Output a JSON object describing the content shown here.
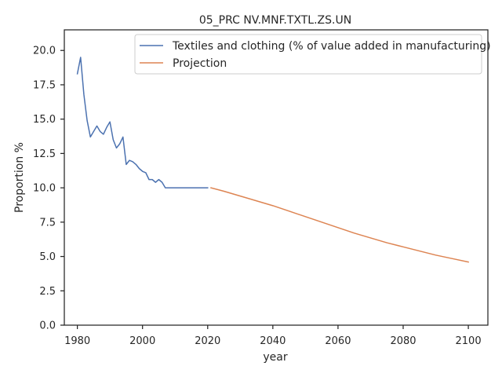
{
  "chart_data": {
    "type": "line",
    "title": "05_PRC NV.MNF.TXTL.ZS.UN",
    "xlabel": "year",
    "ylabel": "Proportion %",
    "xlim": [
      1976,
      2106
    ],
    "ylim": [
      0,
      21.5
    ],
    "x_ticks": [
      1980,
      2000,
      2020,
      2040,
      2060,
      2080,
      2100
    ],
    "y_ticks": [
      0.0,
      2.5,
      5.0,
      7.5,
      10.0,
      12.5,
      15.0,
      17.5,
      20.0
    ],
    "grid": false,
    "legend_position": "top-right",
    "series": [
      {
        "name": "Textiles and clothing (% of value added in manufacturing)",
        "color": "#4c72b0",
        "x": [
          1980,
          1981,
          1982,
          1983,
          1984,
          1985,
          1986,
          1987,
          1988,
          1989,
          1990,
          1991,
          1992,
          1993,
          1994,
          1995,
          1996,
          1997,
          1998,
          1999,
          2000,
          2001,
          2002,
          2003,
          2004,
          2005,
          2006,
          2007,
          2008,
          2009,
          2010,
          2011,
          2012,
          2013,
          2014,
          2015,
          2016,
          2017,
          2018,
          2019,
          2020
        ],
        "y": [
          18.3,
          19.5,
          16.8,
          14.9,
          13.7,
          14.1,
          14.5,
          14.1,
          13.9,
          14.4,
          14.8,
          13.5,
          12.9,
          13.2,
          13.7,
          11.7,
          12.0,
          11.9,
          11.7,
          11.4,
          11.2,
          11.1,
          10.6,
          10.6,
          10.4,
          10.6,
          10.4,
          10.0,
          10.0,
          10.0,
          10.0,
          10.0,
          10.0,
          10.0,
          10.0,
          10.0,
          10.0,
          10.0,
          10.0,
          10.0,
          10.0
        ]
      },
      {
        "name": "Projection",
        "color": "#dd8452",
        "x": [
          2021,
          2025,
          2030,
          2035,
          2040,
          2045,
          2050,
          2055,
          2060,
          2065,
          2070,
          2075,
          2080,
          2085,
          2090,
          2095,
          2100
        ],
        "y": [
          10.0,
          9.75,
          9.4,
          9.05,
          8.7,
          8.3,
          7.9,
          7.5,
          7.1,
          6.7,
          6.35,
          6.0,
          5.7,
          5.4,
          5.1,
          4.85,
          4.6
        ]
      }
    ]
  }
}
